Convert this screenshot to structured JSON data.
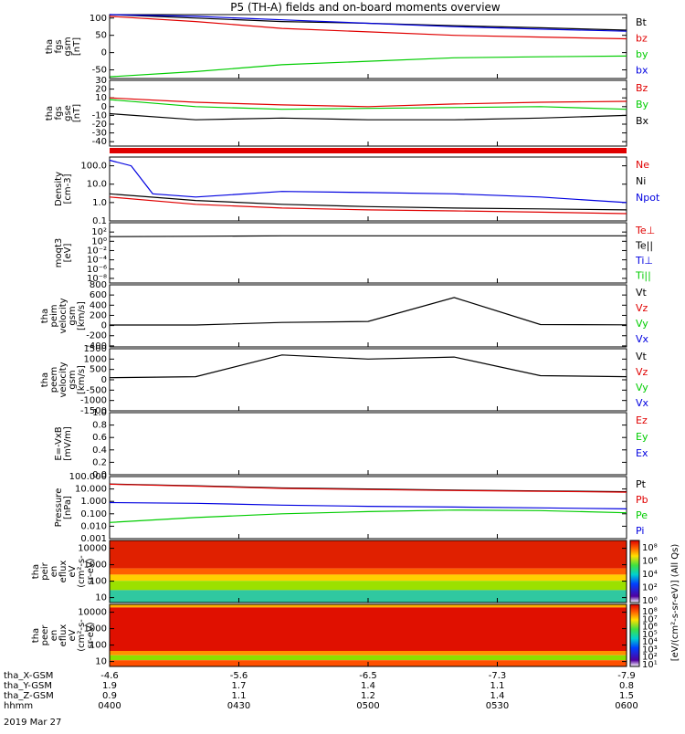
{
  "title": "P5 (TH-A) fields and on-board moments overview",
  "date_label": "2019 Mar 27",
  "x_axis": {
    "rows": [
      {
        "name": "tha_X-GSM",
        "values": [
          "-4.6",
          "-5.6",
          "-6.5",
          "-7.3",
          "-7.9"
        ]
      },
      {
        "name": "tha_Y-GSM",
        "values": [
          "1.9",
          "1.7",
          "1.4",
          "1.1",
          "0.8"
        ]
      },
      {
        "name": "tha_Z-GSM",
        "values": [
          "0.9",
          "1.1",
          "1.2",
          "1.4",
          "1.5"
        ]
      },
      {
        "name": "hhmm",
        "values": [
          "0400",
          "0430",
          "0500",
          "0530",
          "0600"
        ]
      }
    ],
    "minutes": [
      0,
      30,
      60,
      90,
      120
    ]
  },
  "colors": {
    "black": "#000000",
    "red": "#e00000",
    "green": "#00cc00",
    "blue": "#0000e0"
  },
  "panels": [
    {
      "id": "p1",
      "ylabel": [
        "tha",
        "fgs",
        "gsm",
        "[nT]"
      ],
      "ticks": [
        "100",
        "50",
        "0",
        "-50"
      ],
      "tick_values": [
        100,
        50,
        0,
        -50
      ],
      "ylim": [
        -75,
        110
      ],
      "legend": [
        {
          "text": "Bt",
          "color": "#000000"
        },
        {
          "text": "bz",
          "color": "#e00000"
        },
        {
          "text": "by",
          "color": "#00cc00"
        },
        {
          "text": "bx",
          "color": "#0000e0"
        }
      ]
    },
    {
      "id": "p2",
      "ylabel": [
        "tha",
        "fgs",
        "gse",
        "[nT]"
      ],
      "ticks": [
        "30",
        "20",
        "10",
        "0",
        "-10",
        "-20",
        "-30",
        "-40"
      ],
      "tick_values": [
        30,
        20,
        10,
        0,
        -10,
        -20,
        -30,
        -40
      ],
      "ylim": [
        -45,
        30
      ],
      "legend": [
        {
          "text": "Bz",
          "color": "#e00000"
        },
        {
          "text": "By",
          "color": "#00cc00"
        },
        {
          "text": "Bx",
          "color": "#000000"
        }
      ]
    },
    {
      "id": "p3",
      "ylabel": [
        "Density",
        "[cm-3]"
      ],
      "ticks": [
        "100.0",
        "10.0",
        "1.0",
        "0.1"
      ],
      "tick_values": [
        100,
        10,
        1,
        0.1
      ],
      "ylim": [
        0.1,
        300
      ],
      "log": true,
      "legend": [
        {
          "text": "Ne",
          "color": "#e00000"
        },
        {
          "text": "Ni",
          "color": "#000000"
        },
        {
          "text": "Npot",
          "color": "#0000e0"
        }
      ]
    },
    {
      "id": "p4",
      "ylabel": [
        "moqt3",
        "[eV]"
      ],
      "ticks": [
        "10²",
        "10⁰",
        "10⁻²",
        "10⁻⁴",
        "10⁻⁶",
        "10⁻⁸"
      ],
      "tick_values": [
        100,
        1,
        0.01,
        0.0001,
        1e-06,
        1e-08
      ],
      "ylim": [
        1e-09,
        10000
      ],
      "log": true,
      "legend": [
        {
          "text": "Te⊥",
          "color": "#e00000"
        },
        {
          "text": "Te||",
          "color": "#000000"
        },
        {
          "text": "Ti⊥",
          "color": "#0000e0"
        },
        {
          "text": "Ti||",
          "color": "#00cc00"
        }
      ]
    },
    {
      "id": "p5",
      "ylabel": [
        "tha",
        "peim",
        "velocity",
        "gsm",
        "[km/s]"
      ],
      "ticks": [
        "800",
        "600",
        "400",
        "200",
        "0",
        "-200",
        "-400"
      ],
      "tick_values": [
        800,
        600,
        400,
        200,
        0,
        -200,
        -400
      ],
      "ylim": [
        -420,
        800
      ],
      "legend": [
        {
          "text": "Vt",
          "color": "#000000"
        },
        {
          "text": "Vz",
          "color": "#e00000"
        },
        {
          "text": "Vy",
          "color": "#00cc00"
        },
        {
          "text": "Vx",
          "color": "#0000e0"
        }
      ]
    },
    {
      "id": "p6",
      "ylabel": [
        "tha",
        "peem",
        "velocity",
        "gsm",
        "[km/s]"
      ],
      "ticks": [
        "1500",
        "1000",
        "500",
        "0",
        "-500",
        "-1000",
        "-1500"
      ],
      "tick_values": [
        1500,
        1000,
        500,
        0,
        -500,
        -1000,
        -1500
      ],
      "ylim": [
        -1500,
        1500
      ],
      "legend": [
        {
          "text": "Vt",
          "color": "#000000"
        },
        {
          "text": "Vz",
          "color": "#e00000"
        },
        {
          "text": "Vy",
          "color": "#00cc00"
        },
        {
          "text": "Vx",
          "color": "#0000e0"
        }
      ]
    },
    {
      "id": "p7",
      "ylabel": [
        "E=-VxB",
        "[mV/m]"
      ],
      "ticks": [
        "1.0",
        "0.8",
        "0.6",
        "0.4",
        "0.2",
        "0.0"
      ],
      "tick_values": [
        1,
        0.8,
        0.6,
        0.4,
        0.2,
        0
      ],
      "ylim": [
        0,
        1
      ],
      "legend": [
        {
          "text": "Ez",
          "color": "#e00000"
        },
        {
          "text": "Ey",
          "color": "#00cc00"
        },
        {
          "text": "Ex",
          "color": "#0000e0"
        }
      ]
    },
    {
      "id": "p8",
      "ylabel": [
        "Pressure",
        "[nPa]"
      ],
      "ticks": [
        "100.000",
        "10.000",
        "1.000",
        "0.100",
        "0.010",
        "0.001"
      ],
      "tick_values": [
        100,
        10,
        1,
        0.1,
        0.01,
        0.001
      ],
      "ylim": [
        0.001,
        100
      ],
      "log": true,
      "legend": [
        {
          "text": "Pt",
          "color": "#000000"
        },
        {
          "text": "Pb",
          "color": "#e00000"
        },
        {
          "text": "Pe",
          "color": "#00cc00"
        },
        {
          "text": "Pi",
          "color": "#0000e0"
        }
      ]
    },
    {
      "id": "p9",
      "ylabel": [
        "tha",
        "peir",
        "en",
        "eflux",
        "eV",
        "(cm²-s-",
        "sr-eV)"
      ],
      "ticks": [
        "10000",
        "1000",
        "100",
        "10"
      ],
      "tick_values": [
        10000,
        1000,
        100,
        10
      ],
      "ylim": [
        5,
        30000
      ],
      "log": true,
      "legend": []
    },
    {
      "id": "p10",
      "ylabel": [
        "tha",
        "peer",
        "en",
        "eflux",
        "eV",
        "(cm²-s-",
        "sr-eV)"
      ],
      "ticks": [
        "10000",
        "1000",
        "100",
        "10"
      ],
      "tick_values": [
        10000,
        1000,
        100,
        10
      ],
      "ylim": [
        5,
        30000
      ],
      "log": true,
      "legend": []
    }
  ],
  "colorbars": [
    {
      "ticks": [
        "10⁸",
        "10⁶",
        "10⁴",
        "10²",
        "10⁰"
      ]
    },
    {
      "ticks": [
        "10⁸",
        "10⁷",
        "10⁶",
        "10⁵",
        "10⁴",
        "10³",
        "10²",
        "10¹"
      ]
    }
  ],
  "colorbar_label": "[eV/(cm²-s-sr-eV)] (All Qs)",
  "chart_data": {
    "type": "line",
    "title": "P5 (TH-A) fields and on-board moments overview",
    "xlabel": "hhmm",
    "categories": [
      "0400",
      "0430",
      "0500",
      "0530",
      "0600"
    ],
    "xlim_minutes": [
      0,
      120
    ],
    "series": [
      {
        "name": "Bt",
        "panel": "p1",
        "x": [
          0,
          20,
          40,
          60,
          80,
          100,
          120
        ],
        "values": [
          110,
          100,
          90,
          85,
          78,
          72,
          65
        ]
      },
      {
        "name": "bz",
        "panel": "p1",
        "x": [
          0,
          20,
          40,
          60,
          80,
          100,
          120
        ],
        "values": [
          105,
          90,
          70,
          60,
          50,
          45,
          40
        ]
      },
      {
        "name": "by",
        "panel": "p1",
        "x": [
          0,
          20,
          40,
          60,
          80,
          100,
          120
        ],
        "values": [
          -70,
          -55,
          -35,
          -25,
          -15,
          -12,
          -10
        ]
      },
      {
        "name": "bx",
        "panel": "p1",
        "x": [
          0,
          20,
          40,
          60,
          80,
          100,
          120
        ],
        "values": [
          110,
          105,
          95,
          85,
          75,
          68,
          62
        ]
      },
      {
        "name": "Bz",
        "panel": "p2",
        "x": [
          0,
          20,
          40,
          60,
          80,
          100,
          120
        ],
        "values": [
          10,
          5,
          2,
          0,
          3,
          5,
          6
        ]
      },
      {
        "name": "By",
        "panel": "p2",
        "x": [
          0,
          20,
          40,
          60,
          80,
          100,
          120
        ],
        "values": [
          8,
          0,
          -3,
          -2,
          -1,
          0,
          -3
        ]
      },
      {
        "name": "Bx",
        "panel": "p2",
        "x": [
          0,
          20,
          40,
          60,
          80,
          100,
          120
        ],
        "values": [
          -8,
          -15,
          -13,
          -15,
          -15,
          -13,
          -10
        ]
      },
      {
        "name": "Ne",
        "panel": "p3",
        "x": [
          0,
          20,
          40,
          60,
          80,
          100,
          120
        ],
        "values": [
          2.0,
          0.8,
          0.5,
          0.4,
          0.35,
          0.3,
          0.25
        ]
      },
      {
        "name": "Ni",
        "panel": "p3",
        "x": [
          0,
          20,
          40,
          60,
          80,
          100,
          120
        ],
        "values": [
          3.0,
          1.3,
          0.8,
          0.6,
          0.5,
          0.45,
          0.4
        ]
      },
      {
        "name": "Npot",
        "panel": "p3",
        "x": [
          0,
          5,
          10,
          20,
          40,
          60,
          80,
          100,
          120
        ],
        "values": [
          200,
          100,
          3.0,
          2.0,
          4.0,
          3.5,
          3.0,
          2.0,
          1.0
        ]
      },
      {
        "name": "Te||",
        "panel": "p4",
        "x": [
          0,
          20,
          40,
          60,
          80,
          100,
          120
        ],
        "values": [
          10,
          12,
          15,
          15,
          15,
          15,
          15
        ]
      },
      {
        "name": "Vt",
        "panel": "p5",
        "x": [
          0,
          20,
          40,
          60,
          80,
          100,
          120
        ],
        "values": [
          10,
          10,
          60,
          80,
          550,
          20,
          15
        ]
      },
      {
        "name": "Vt",
        "panel": "p6",
        "x": [
          0,
          20,
          40,
          60,
          80,
          100,
          120
        ],
        "values": [
          100,
          150,
          1200,
          1000,
          1100,
          200,
          150
        ]
      },
      {
        "name": "Pt",
        "panel": "p8",
        "x": [
          0,
          20,
          40,
          60,
          80,
          100,
          120
        ],
        "values": [
          25,
          18,
          12,
          10,
          8,
          7,
          6
        ]
      },
      {
        "name": "Pb",
        "panel": "p8",
        "x": [
          0,
          20,
          40,
          60,
          80,
          100,
          120
        ],
        "values": [
          24,
          17,
          11,
          9,
          7.5,
          6.5,
          5.5
        ]
      },
      {
        "name": "Pe",
        "panel": "p8",
        "x": [
          0,
          20,
          40,
          60,
          80,
          100,
          120
        ],
        "values": [
          0.02,
          0.05,
          0.1,
          0.15,
          0.2,
          0.18,
          0.12
        ]
      },
      {
        "name": "Pi",
        "panel": "p8",
        "x": [
          0,
          20,
          40,
          60,
          80,
          100,
          120
        ],
        "values": [
          0.8,
          0.7,
          0.5,
          0.4,
          0.35,
          0.3,
          0.25
        ]
      }
    ]
  }
}
